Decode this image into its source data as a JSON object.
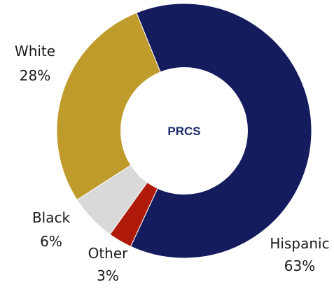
{
  "chart_data": {
    "type": "pie",
    "center_label": "PRCS",
    "categories": [
      "Hispanic",
      "Other",
      "Black",
      "White"
    ],
    "values": [
      63,
      3,
      6,
      28
    ],
    "value_labels": [
      "63%",
      "3%",
      "6%",
      "28%"
    ],
    "colors": [
      "#141c5e",
      "#b01a0a",
      "#d9d9d9",
      "#bf9b2c"
    ],
    "start_angle_deg": -22,
    "donut": true
  }
}
